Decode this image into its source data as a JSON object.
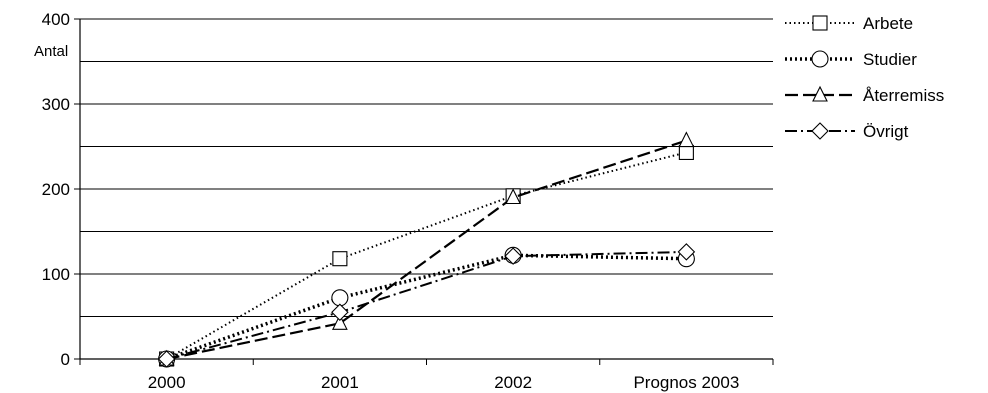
{
  "chart_data": {
    "type": "line",
    "categories": [
      "2000",
      "2001",
      "2002",
      "Prognos 2003"
    ],
    "ylabel": "Antal",
    "ylim": [
      0,
      400
    ],
    "yticks": [
      "0",
      "100",
      "200",
      "300",
      "400"
    ],
    "grid": true,
    "legend_position": "right",
    "series": [
      {
        "name": "Arbete",
        "marker": "square",
        "dash": "dot",
        "values": [
          0,
          118,
          192,
          243
        ]
      },
      {
        "name": "Studier",
        "marker": "circle",
        "dash": "dot-bold",
        "values": [
          0,
          72,
          122,
          118
        ]
      },
      {
        "name": "Återremiss",
        "marker": "triangle",
        "dash": "dash",
        "values": [
          0,
          42,
          190,
          257
        ]
      },
      {
        "name": "Övrigt",
        "marker": "diamond",
        "dash": "dashdot",
        "values": [
          0,
          55,
          121,
          126
        ]
      }
    ]
  }
}
